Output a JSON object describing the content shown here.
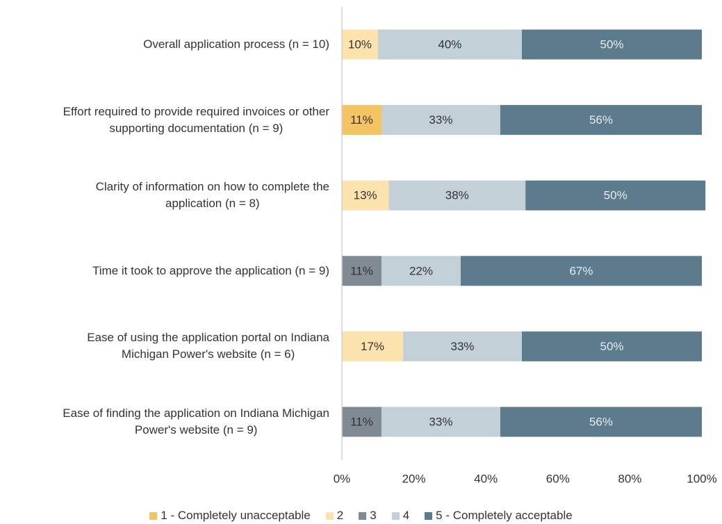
{
  "chart_data": {
    "type": "stacked-barh",
    "categories": [
      "Overall application process (n = 10)",
      "Effort required to provide required invoices or other\nsupporting documentation (n = 9)",
      "Clarity of information on how to complete the\napplication (n = 8)",
      "Time it took to approve the application (n = 9)",
      "Ease of using the application portal on Indiana\nMichigan Power's website (n = 6)",
      "Ease of finding  the application on Indiana Michigan\nPower's website (n = 9)"
    ],
    "series": [
      {
        "name": "1 - Completely unacceptable",
        "color": "#f5c462",
        "values": [
          0,
          11,
          0,
          0,
          0,
          0
        ],
        "value_labels": [
          null,
          "11%",
          null,
          null,
          null,
          null
        ]
      },
      {
        "name": "2",
        "color": "#fce3ad",
        "values": [
          10,
          0,
          13,
          0,
          17,
          0
        ],
        "value_labels": [
          "10%",
          null,
          "13%",
          null,
          "17%",
          null
        ]
      },
      {
        "name": "3",
        "color": "#7f8a92",
        "values": [
          0,
          0,
          0,
          11,
          0,
          11
        ],
        "value_labels": [
          null,
          null,
          null,
          "11%",
          null,
          "11%"
        ]
      },
      {
        "name": "4",
        "color": "#c3d0d8",
        "values": [
          40,
          33,
          38,
          22,
          33,
          33
        ],
        "value_labels": [
          "40%",
          "33%",
          "38%",
          "22%",
          "33%",
          "33%"
        ]
      },
      {
        "name": "5 - Completely acceptable",
        "color": "#5c7b8d",
        "values": [
          50,
          56,
          50,
          67,
          50,
          56
        ],
        "value_labels": [
          "50%",
          "56%",
          "50%",
          "67%",
          "50%",
          "56%"
        ]
      }
    ],
    "xlim": [
      0,
      100
    ],
    "xticks": [
      {
        "value": 0,
        "label": "0%"
      },
      {
        "value": 20,
        "label": "20%"
      },
      {
        "value": 40,
        "label": "40%"
      },
      {
        "value": 60,
        "label": "60%"
      },
      {
        "value": 80,
        "label": "80%"
      },
      {
        "value": 100,
        "label": "100%"
      }
    ],
    "grid": false,
    "legend": "bottom"
  }
}
